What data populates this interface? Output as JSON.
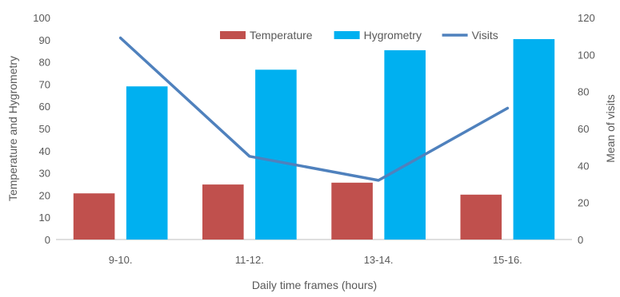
{
  "chart_data": {
    "type": "bar",
    "categories": [
      "9-10.",
      "11-12.",
      "13-14.",
      "15-16."
    ],
    "series": [
      {
        "name": "Temperature",
        "kind": "bar",
        "axis": "left",
        "color": "#C0504D",
        "values": [
          20.8,
          24.8,
          25.6,
          20.2
        ]
      },
      {
        "name": "Hygrometry",
        "kind": "bar",
        "axis": "left",
        "color": "#00B0F0",
        "values": [
          69,
          76.5,
          85.3,
          90.3
        ]
      },
      {
        "name": "Visits",
        "kind": "line",
        "axis": "right",
        "color": "#4F81BD",
        "values": [
          109,
          45,
          32,
          71
        ]
      }
    ],
    "xlabel": "Daily time frames (hours)",
    "ylabel": "Temperature and Hygrometry",
    "y2label": "Mean of visits",
    "ylim": [
      0,
      100
    ],
    "yticks": [
      "0",
      "10",
      "20",
      "30",
      "40",
      "50",
      "60",
      "70",
      "80",
      "90",
      "100"
    ],
    "y2lim": [
      0,
      120
    ],
    "y2ticks": [
      "0",
      "20",
      "40",
      "60",
      "80",
      "100",
      "120"
    ],
    "grid": false,
    "legend_position": "top"
  }
}
